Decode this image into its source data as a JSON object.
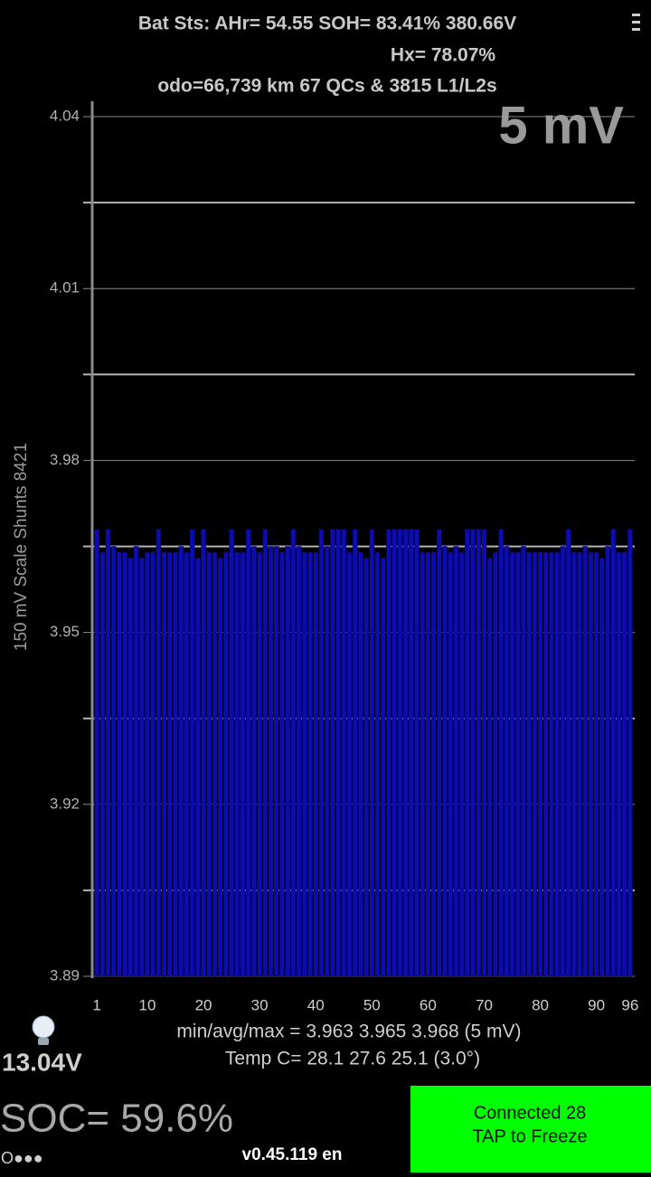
{
  "header": {
    "line1": "Bat Sts: AHr= 54.55 SOH= 83.41% 380.66V",
    "line2": "Hx= 78.07%",
    "line3": "odo=66,739 km 67 QCs & 3815 L1/L2s"
  },
  "chart_data": {
    "type": "bar",
    "scale_label": "5 mV",
    "ylabel": "150 mV Scale   Shunts 8421",
    "color": "#0c0cb0",
    "x": [
      1,
      2,
      3,
      4,
      5,
      6,
      7,
      8,
      9,
      10,
      11,
      12,
      13,
      14,
      15,
      16,
      17,
      18,
      19,
      20,
      21,
      22,
      23,
      24,
      25,
      26,
      27,
      28,
      29,
      30,
      31,
      32,
      33,
      34,
      35,
      36,
      37,
      38,
      39,
      40,
      41,
      42,
      43,
      44,
      45,
      46,
      47,
      48,
      49,
      50,
      51,
      52,
      53,
      54,
      55,
      56,
      57,
      58,
      59,
      60,
      61,
      62,
      63,
      64,
      65,
      66,
      67,
      68,
      69,
      70,
      71,
      72,
      73,
      74,
      75,
      76,
      77,
      78,
      79,
      80,
      81,
      82,
      83,
      84,
      85,
      86,
      87,
      88,
      89,
      90,
      91,
      92,
      93,
      94,
      95,
      96
    ],
    "values": [
      3.968,
      3.964,
      3.968,
      3.965,
      3.964,
      3.964,
      3.963,
      3.965,
      3.963,
      3.964,
      3.964,
      3.968,
      3.964,
      3.964,
      3.964,
      3.965,
      3.964,
      3.968,
      3.963,
      3.968,
      3.964,
      3.964,
      3.963,
      3.964,
      3.968,
      3.964,
      3.964,
      3.968,
      3.965,
      3.964,
      3.968,
      3.965,
      3.965,
      3.964,
      3.965,
      3.968,
      3.965,
      3.964,
      3.964,
      3.964,
      3.968,
      3.965,
      3.968,
      3.968,
      3.968,
      3.964,
      3.968,
      3.964,
      3.963,
      3.968,
      3.964,
      3.963,
      3.968,
      3.968,
      3.968,
      3.968,
      3.968,
      3.968,
      3.964,
      3.964,
      3.964,
      3.968,
      3.965,
      3.964,
      3.965,
      3.964,
      3.968,
      3.968,
      3.968,
      3.968,
      3.963,
      3.964,
      3.968,
      3.965,
      3.964,
      3.964,
      3.965,
      3.964,
      3.964,
      3.964,
      3.964,
      3.964,
      3.964,
      3.965,
      3.968,
      3.964,
      3.964,
      3.965,
      3.964,
      3.964,
      3.963,
      3.965,
      3.968,
      3.964,
      3.964,
      3.968
    ],
    "xlim": [
      0.5,
      96.5
    ],
    "xticks": [
      1,
      10,
      20,
      30,
      40,
      50,
      60,
      70,
      80,
      90,
      96
    ],
    "ylim": [
      3.89,
      4.04
    ],
    "yticks": [
      3.89,
      3.92,
      3.95,
      3.98,
      4.01,
      4.04
    ],
    "yticks_minor": [
      3.905,
      3.935,
      3.965,
      3.995,
      4.025
    ],
    "grid": true
  },
  "stats": {
    "minavgmax": "min/avg/max = 3.963 3.965 3.968  (5 mV)",
    "temp": "Temp C= 28.1  27.6  25.1  (3.0°)"
  },
  "footer": {
    "aux_voltage": "13.04V",
    "soc": "SOC= 59.6%",
    "status": "O●●●",
    "version": "v0.45.119 en",
    "button_line1": "Connected 28",
    "button_line2": "TAP to Freeze"
  }
}
